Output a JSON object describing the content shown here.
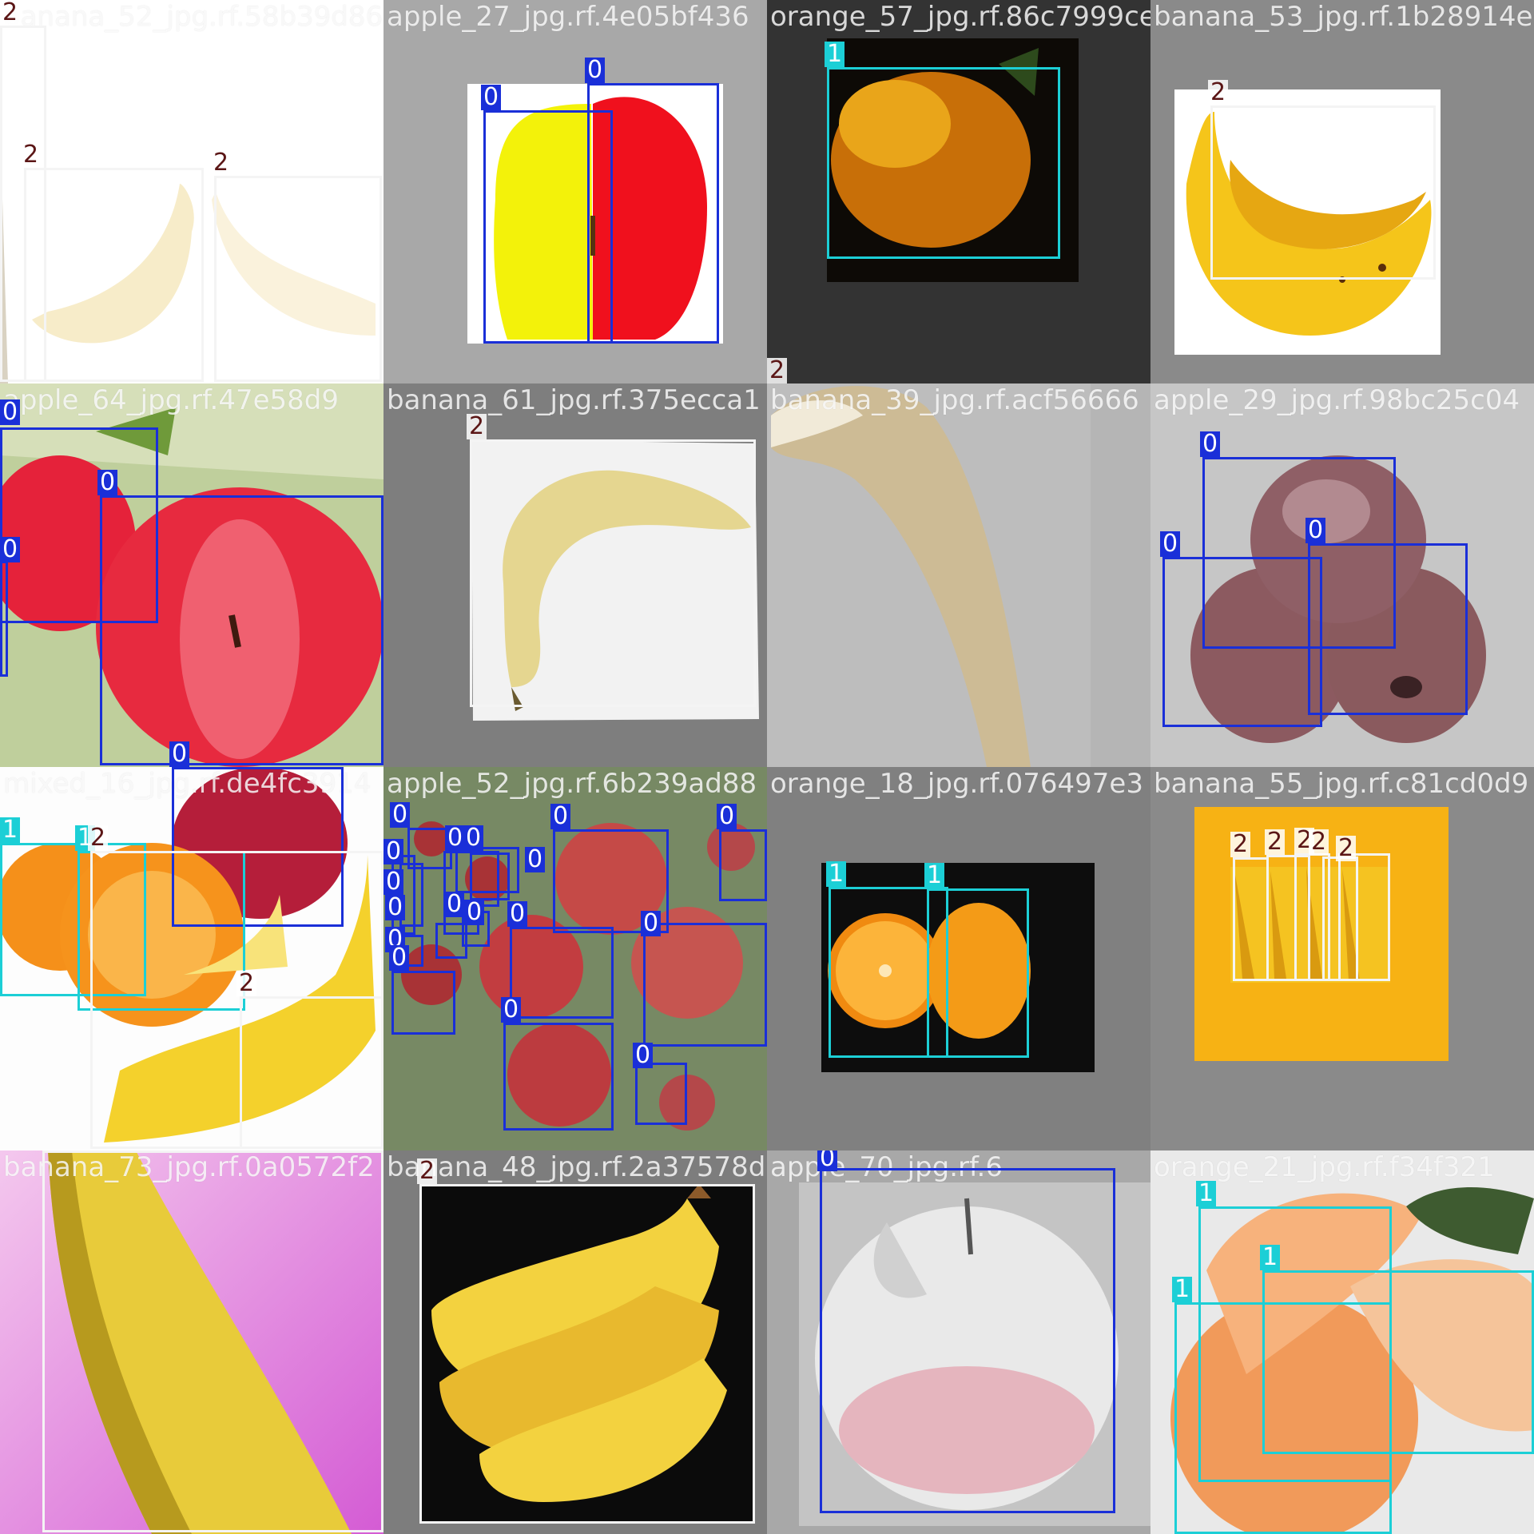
{
  "classes": [
    {
      "id": "0",
      "color": "#1a2fd8"
    },
    {
      "id": "1",
      "color": "#1ccfd6"
    },
    {
      "id": "2",
      "color": "#f4f4f4"
    }
  ],
  "tiles": [
    {
      "filename": "banana_52_jpg.rf.58b39d86",
      "boxes": [
        {
          "cls": "2"
        },
        {
          "cls": "2"
        },
        {
          "cls": "2"
        }
      ]
    },
    {
      "filename": "apple_27_jpg.rf.4e05bf436",
      "boxes": [
        {
          "cls": "0"
        },
        {
          "cls": "0"
        }
      ]
    },
    {
      "filename": "orange_57_jpg.rf.86c7999ce",
      "boxes": [
        {
          "cls": "1"
        },
        {
          "cls": "2"
        }
      ]
    },
    {
      "filename": "banana_53_jpg.rf.1b28914e",
      "boxes": [
        {
          "cls": "2"
        }
      ]
    },
    {
      "filename": "apple_64_jpg.rf.47e58d9",
      "boxes": [
        {
          "cls": "0"
        },
        {
          "cls": "0"
        },
        {
          "cls": "0"
        },
        {
          "cls": "0"
        }
      ]
    },
    {
      "filename": "banana_61_jpg.rf.375ecca1",
      "boxes": [
        {
          "cls": "2"
        }
      ]
    },
    {
      "filename": "banana_39_jpg.rf.acf56666",
      "boxes": []
    },
    {
      "filename": "apple_29_jpg.rf.98bc25c04",
      "boxes": [
        {
          "cls": "0"
        },
        {
          "cls": "0"
        },
        {
          "cls": "0"
        }
      ]
    },
    {
      "filename": "mixed_16_jpg.rf.de4fc3914",
      "boxes": [
        {
          "cls": "1"
        },
        {
          "cls": "1"
        },
        {
          "cls": "2"
        },
        {
          "cls": "2"
        }
      ]
    },
    {
      "filename": "apple_52_jpg.rf.6b239ad88",
      "boxes": [
        {
          "cls": "0"
        },
        {
          "cls": "0"
        },
        {
          "cls": "0"
        },
        {
          "cls": "0"
        },
        {
          "cls": "0"
        },
        {
          "cls": "0"
        },
        {
          "cls": "0"
        },
        {
          "cls": "0"
        },
        {
          "cls": "0"
        },
        {
          "cls": "0"
        },
        {
          "cls": "0"
        },
        {
          "cls": "0"
        },
        {
          "cls": "0"
        },
        {
          "cls": "0"
        },
        {
          "cls": "0"
        },
        {
          "cls": "0"
        },
        {
          "cls": "0"
        }
      ]
    },
    {
      "filename": "orange_18_jpg.rf.076497e3",
      "boxes": [
        {
          "cls": "1"
        },
        {
          "cls": "1"
        }
      ]
    },
    {
      "filename": "banana_55_jpg.rf.c81cd0d9",
      "boxes": [
        {
          "cls": "2"
        },
        {
          "cls": "2"
        },
        {
          "cls": "2"
        },
        {
          "cls": "2"
        },
        {
          "cls": "2"
        }
      ]
    },
    {
      "filename": "banana_73_jpg.rf.0a0572f2",
      "boxes": [
        {
          "cls": "2"
        }
      ]
    },
    {
      "filename": "banana_48_jpg.rf.2a37578d",
      "boxes": [
        {
          "cls": "2"
        }
      ]
    },
    {
      "filename": "apple_70_jpg.rf.6",
      "boxes": [
        {
          "cls": "0"
        }
      ]
    },
    {
      "filename": "orange_21_jpg.rf.f34f321",
      "boxes": [
        {
          "cls": "1"
        },
        {
          "cls": "1"
        },
        {
          "cls": "1"
        }
      ]
    }
  ]
}
